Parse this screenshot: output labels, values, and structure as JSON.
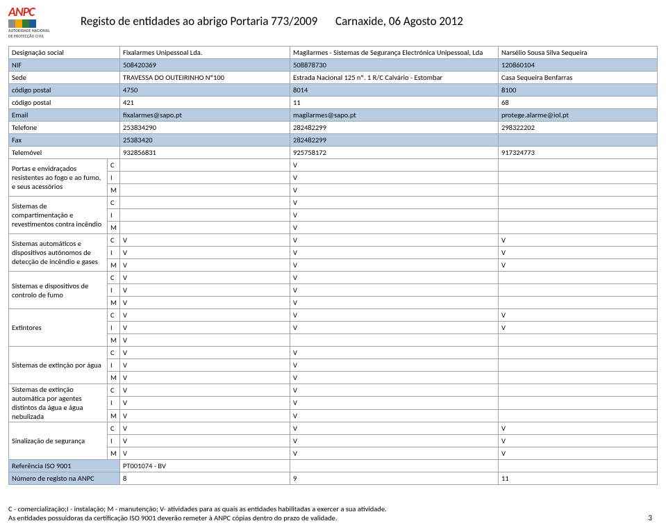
{
  "header": {
    "logo_name": "ANPC",
    "logo_sub1": "AUTORIDADE NACIONAL",
    "logo_sub2": "DE PROTECÇÃO CIVIL",
    "title_left": "Registo de entidades ao abrigo Portaria 773/2009",
    "title_right": "Carnaxide, 06 Agosto 2012"
  },
  "labels": {
    "designacao": "Designação social",
    "nif": "NIF",
    "sede": "Sede",
    "cp1": "código postal",
    "cp2": "código postal",
    "email": "Email",
    "telefone": "Telefone",
    "fax": "Fax",
    "telemovel": "Telemóvel",
    "cat1": "Portas e envidraçados resistentes ao fogo e ao fumo, e seus acessórios",
    "cat2": "Sistemas de compartimentação e revestimentos contra incêndio",
    "cat3": "Sistemas automáticos e dispositivos autónomos de detecção de incêndio e gases",
    "cat4": "Sistemas e dispositivos de controlo de fumo",
    "cat5": "Extintores",
    "cat6": "Sistemas de extinção por água",
    "cat7": "Sistemas de extinção automática por agentes distintos da água e água nebulizada",
    "cat8": "Sinalização de segurança",
    "ref_iso": "Referência ISO 9001",
    "num_reg": "Número de registo na ANPC"
  },
  "cim": {
    "c": "C",
    "i": "I",
    "m": "M"
  },
  "entities": {
    "e1": {
      "designacao": "Fixalarmes Unipessoal Lda.",
      "nif": "508420369",
      "sede": "TRAVESSA DO OUTEIRINHO Nº100",
      "cp1": "4750",
      "cp2": "421",
      "email": "fixalarmes@sapo.pt",
      "telefone": "253834290",
      "fax": "25383420",
      "telemovel": "932856831",
      "ref_iso": "PT001074 - BV",
      "num_reg": "8"
    },
    "e2": {
      "designacao": "Magilarmes - Sistemas de Segurança Electrónica Unipessoal, Lda",
      "nif": "508878730",
      "sede": "Estrada Nacional 125 nº. 1 R/C Calvário - Estombar",
      "cp1": "8014",
      "cp2": "11",
      "email": "magilarmes@sapo.pt",
      "telefone": "282482299",
      "fax": "282482299",
      "telemovel": "925758172",
      "ref_iso": "",
      "num_reg": "9"
    },
    "e3": {
      "designacao": "Narsélio Sousa Silva Sequeira",
      "nif": "120860104",
      "sede": "Casa Sequeira  Benfarras",
      "cp1": "8100",
      "cp2": "68",
      "email": "protege.alarme@iol.pt",
      "telefone": "298322202",
      "fax": "",
      "telemovel": "917324773",
      "ref_iso": "",
      "num_reg": "11"
    }
  },
  "grid": {
    "cat1": {
      "c": [
        "",
        "V",
        ""
      ],
      "i": [
        "",
        "V",
        ""
      ],
      "m": [
        "",
        "V",
        ""
      ]
    },
    "cat2": {
      "c": [
        "",
        "V",
        ""
      ],
      "i": [
        "",
        "V",
        ""
      ],
      "m": [
        "",
        "V",
        ""
      ]
    },
    "cat3": {
      "c": [
        "V",
        "V",
        "V"
      ],
      "i": [
        "V",
        "V",
        "V"
      ],
      "m": [
        "V",
        "V",
        "V"
      ]
    },
    "cat4": {
      "c": [
        "V",
        "V",
        ""
      ],
      "i": [
        "V",
        "V",
        ""
      ],
      "m": [
        "V",
        "V",
        ""
      ]
    },
    "cat5": {
      "c": [
        "V",
        "V",
        "V"
      ],
      "i": [
        "V",
        "V",
        "V"
      ],
      "m": [
        "V",
        "",
        ""
      ]
    },
    "cat6": {
      "c": [
        "V",
        "V",
        ""
      ],
      "i": [
        "V",
        "V",
        ""
      ],
      "m": [
        "V",
        "V",
        ""
      ]
    },
    "cat7": {
      "c": [
        "V",
        "V",
        ""
      ],
      "i": [
        "V",
        "V",
        ""
      ],
      "m": [
        "V",
        "V",
        ""
      ]
    },
    "cat8": {
      "c": [
        "V",
        "V",
        "V"
      ],
      "i": [
        "V",
        "V",
        "V"
      ],
      "m": [
        "V",
        "V",
        "V"
      ]
    }
  },
  "footer": {
    "line1": "C - comercialização;I - instalação; M - manutenção; V- atividades para as quais as entidades habilitadas a exercer a sua atividade.",
    "line2": "As entidades possuidoras da certificação ISO 9001 deverão remeter à ANPC cópias dentro do prazo de validade.",
    "page": "3"
  },
  "colors": {
    "header_blue": "#b8cde4",
    "border": "#9aa6b2",
    "logo_red": "#d62e1f"
  }
}
